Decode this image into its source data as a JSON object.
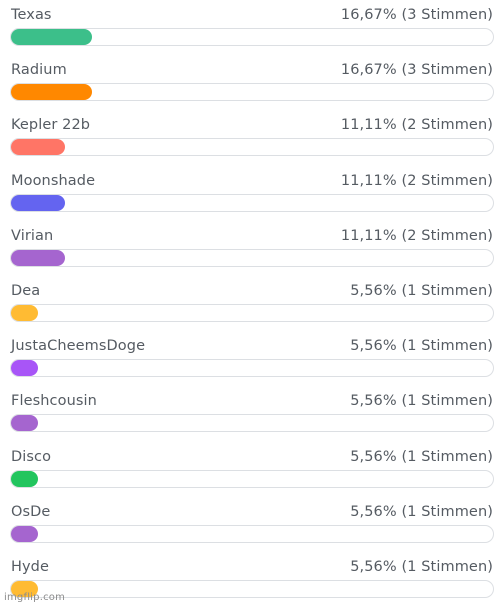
{
  "poll": {
    "options": [
      {
        "name": "Texas",
        "result": "16,67% (3 Stimmen)",
        "fraction": 0.1667,
        "color": "#3cbf8a"
      },
      {
        "name": "Radium",
        "result": "16,67% (3 Stimmen)",
        "fraction": 0.1667,
        "color": "#ff8800"
      },
      {
        "name": "Kepler 22b",
        "result": "11,11% (2 Stimmen)",
        "fraction": 0.1111,
        "color": "#ff7566"
      },
      {
        "name": "Moonshade",
        "result": "11,11% (2 Stimmen)",
        "fraction": 0.1111,
        "color": "#6464f0"
      },
      {
        "name": "Virian",
        "result": "11,11% (2 Stimmen)",
        "fraction": 0.1111,
        "color": "#a565cf"
      },
      {
        "name": "Dea",
        "result": "5,56% (1 Stimmen)",
        "fraction": 0.0556,
        "color": "#ffbb33"
      },
      {
        "name": "JustaCheemsDoge",
        "result": "5,56% (1 Stimmen)",
        "fraction": 0.0556,
        "color": "#a855f7"
      },
      {
        "name": "Fleshcousin",
        "result": "5,56% (1 Stimmen)",
        "fraction": 0.0556,
        "color": "#a565cf"
      },
      {
        "name": "Disco",
        "result": "5,56% (1 Stimmen)",
        "fraction": 0.0556,
        "color": "#22c55e"
      },
      {
        "name": "OsDe",
        "result": "5,56% (1 Stimmen)",
        "fraction": 0.0556,
        "color": "#a565cf"
      },
      {
        "name": "Hyde",
        "result": "5,56% (1 Stimmen)",
        "fraction": 0.0556,
        "color": "#ffbb33"
      }
    ]
  },
  "watermark": "imgflip.com"
}
